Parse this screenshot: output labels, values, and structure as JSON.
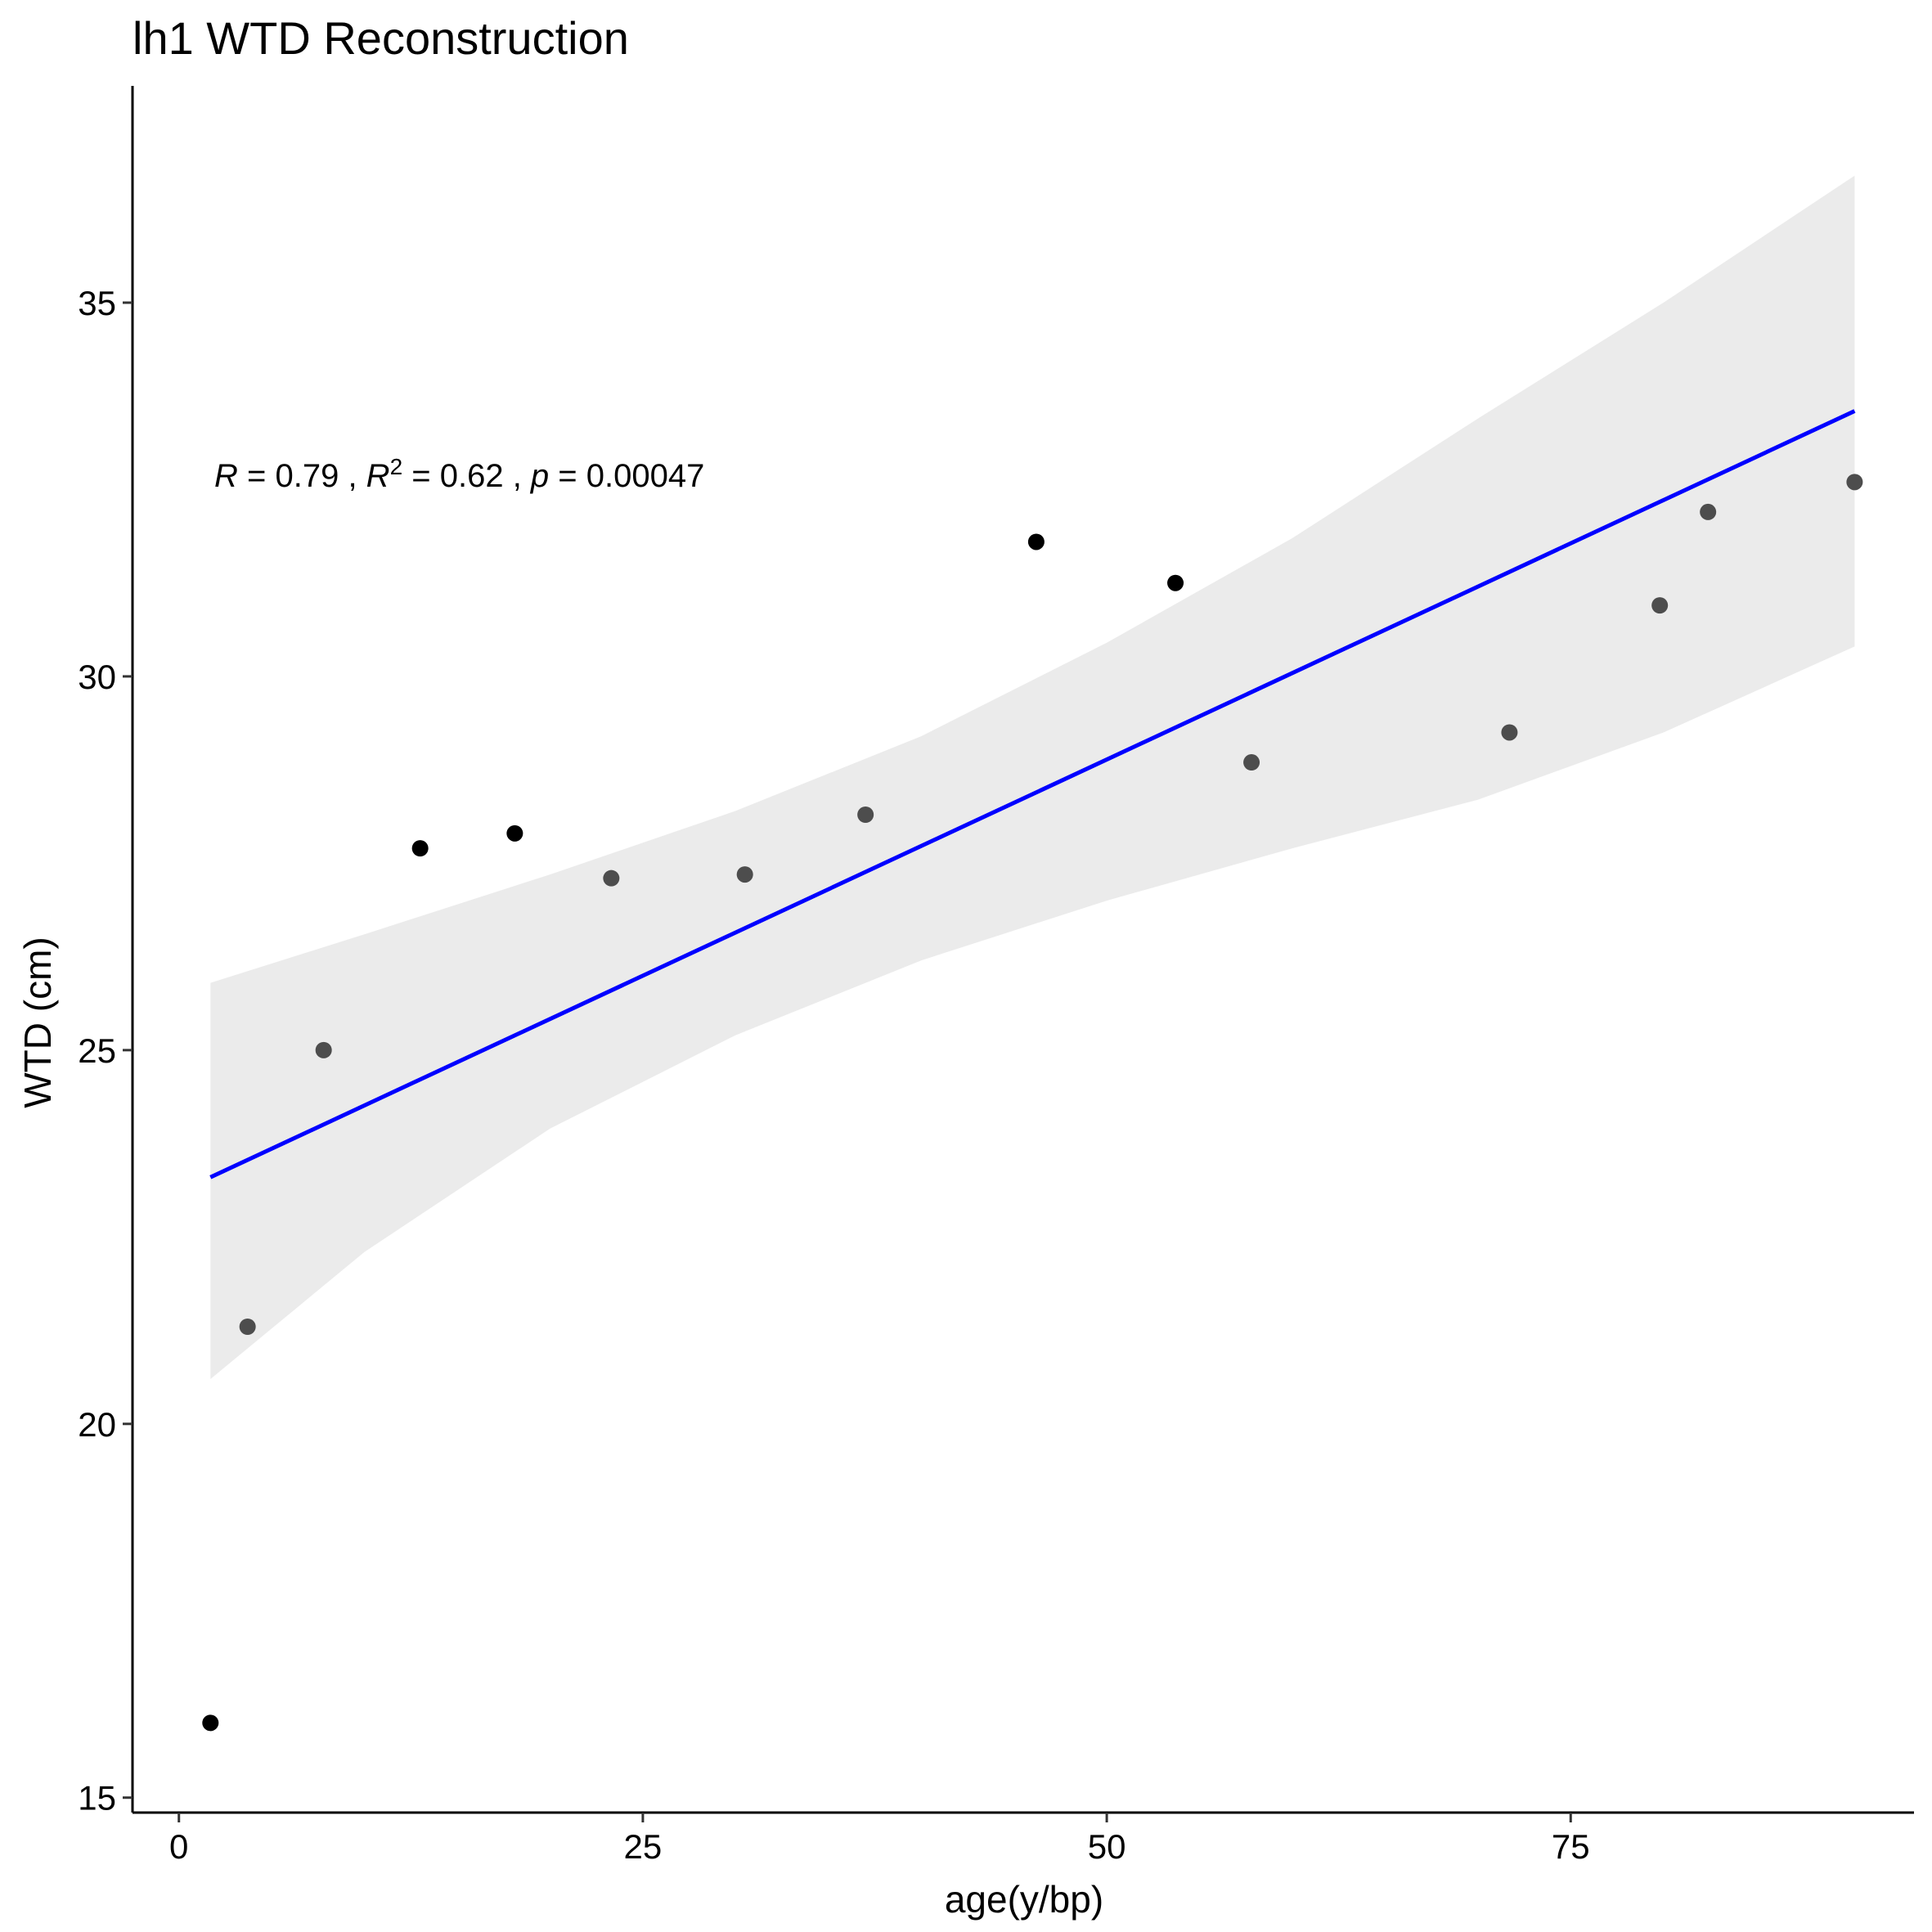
{
  "chart_data": {
    "type": "scatter",
    "title": "lh1 WTD Reconstruction",
    "xlabel": "age(y/bp)",
    "ylabel": "WTD (cm)",
    "xlim": [
      -2.5,
      93.5
    ],
    "ylim": [
      14.8,
      37.9
    ],
    "xticks": [
      0,
      25,
      50,
      75
    ],
    "yticks": [
      15,
      20,
      25,
      30,
      35
    ],
    "grid": false,
    "legend": "none",
    "annotation": {
      "r_label": "R",
      "r_value": " = 0.79 , ",
      "r2_label": "R",
      "r2_sup": "2",
      "r2_value": " = 0.62 , ",
      "p_label": "p",
      "p_value": " = 0.00047"
    },
    "points": [
      {
        "x": 1.7,
        "y": 16.0
      },
      {
        "x": 3.7,
        "y": 21.3
      },
      {
        "x": 7.8,
        "y": 25.0
      },
      {
        "x": 13.0,
        "y": 27.7
      },
      {
        "x": 18.1,
        "y": 27.9
      },
      {
        "x": 23.3,
        "y": 27.3
      },
      {
        "x": 30.5,
        "y": 27.35
      },
      {
        "x": 37.0,
        "y": 28.15
      },
      {
        "x": 46.2,
        "y": 31.8
      },
      {
        "x": 53.7,
        "y": 31.25
      },
      {
        "x": 57.8,
        "y": 28.85
      },
      {
        "x": 71.7,
        "y": 29.25
      },
      {
        "x": 79.8,
        "y": 30.95
      },
      {
        "x": 82.4,
        "y": 32.2
      },
      {
        "x": 90.3,
        "y": 32.6
      }
    ],
    "regression": {
      "x": [
        1.7,
        90.3
      ],
      "y": [
        23.3,
        33.55
      ],
      "color": "#0000ff"
    },
    "confidence_band": {
      "x": [
        1.7,
        10,
        20,
        30,
        40,
        50,
        60,
        70,
        80,
        90.3
      ],
      "upper": [
        25.9,
        26.55,
        27.35,
        28.2,
        29.2,
        30.45,
        31.85,
        33.45,
        35.0,
        36.7
      ],
      "lower": [
        20.6,
        22.3,
        23.95,
        25.2,
        26.2,
        27.0,
        27.7,
        28.35,
        29.25,
        30.4
      ],
      "color": "#ebebeb"
    },
    "point_colors": [
      "#000000",
      "#4d4d4d"
    ]
  }
}
